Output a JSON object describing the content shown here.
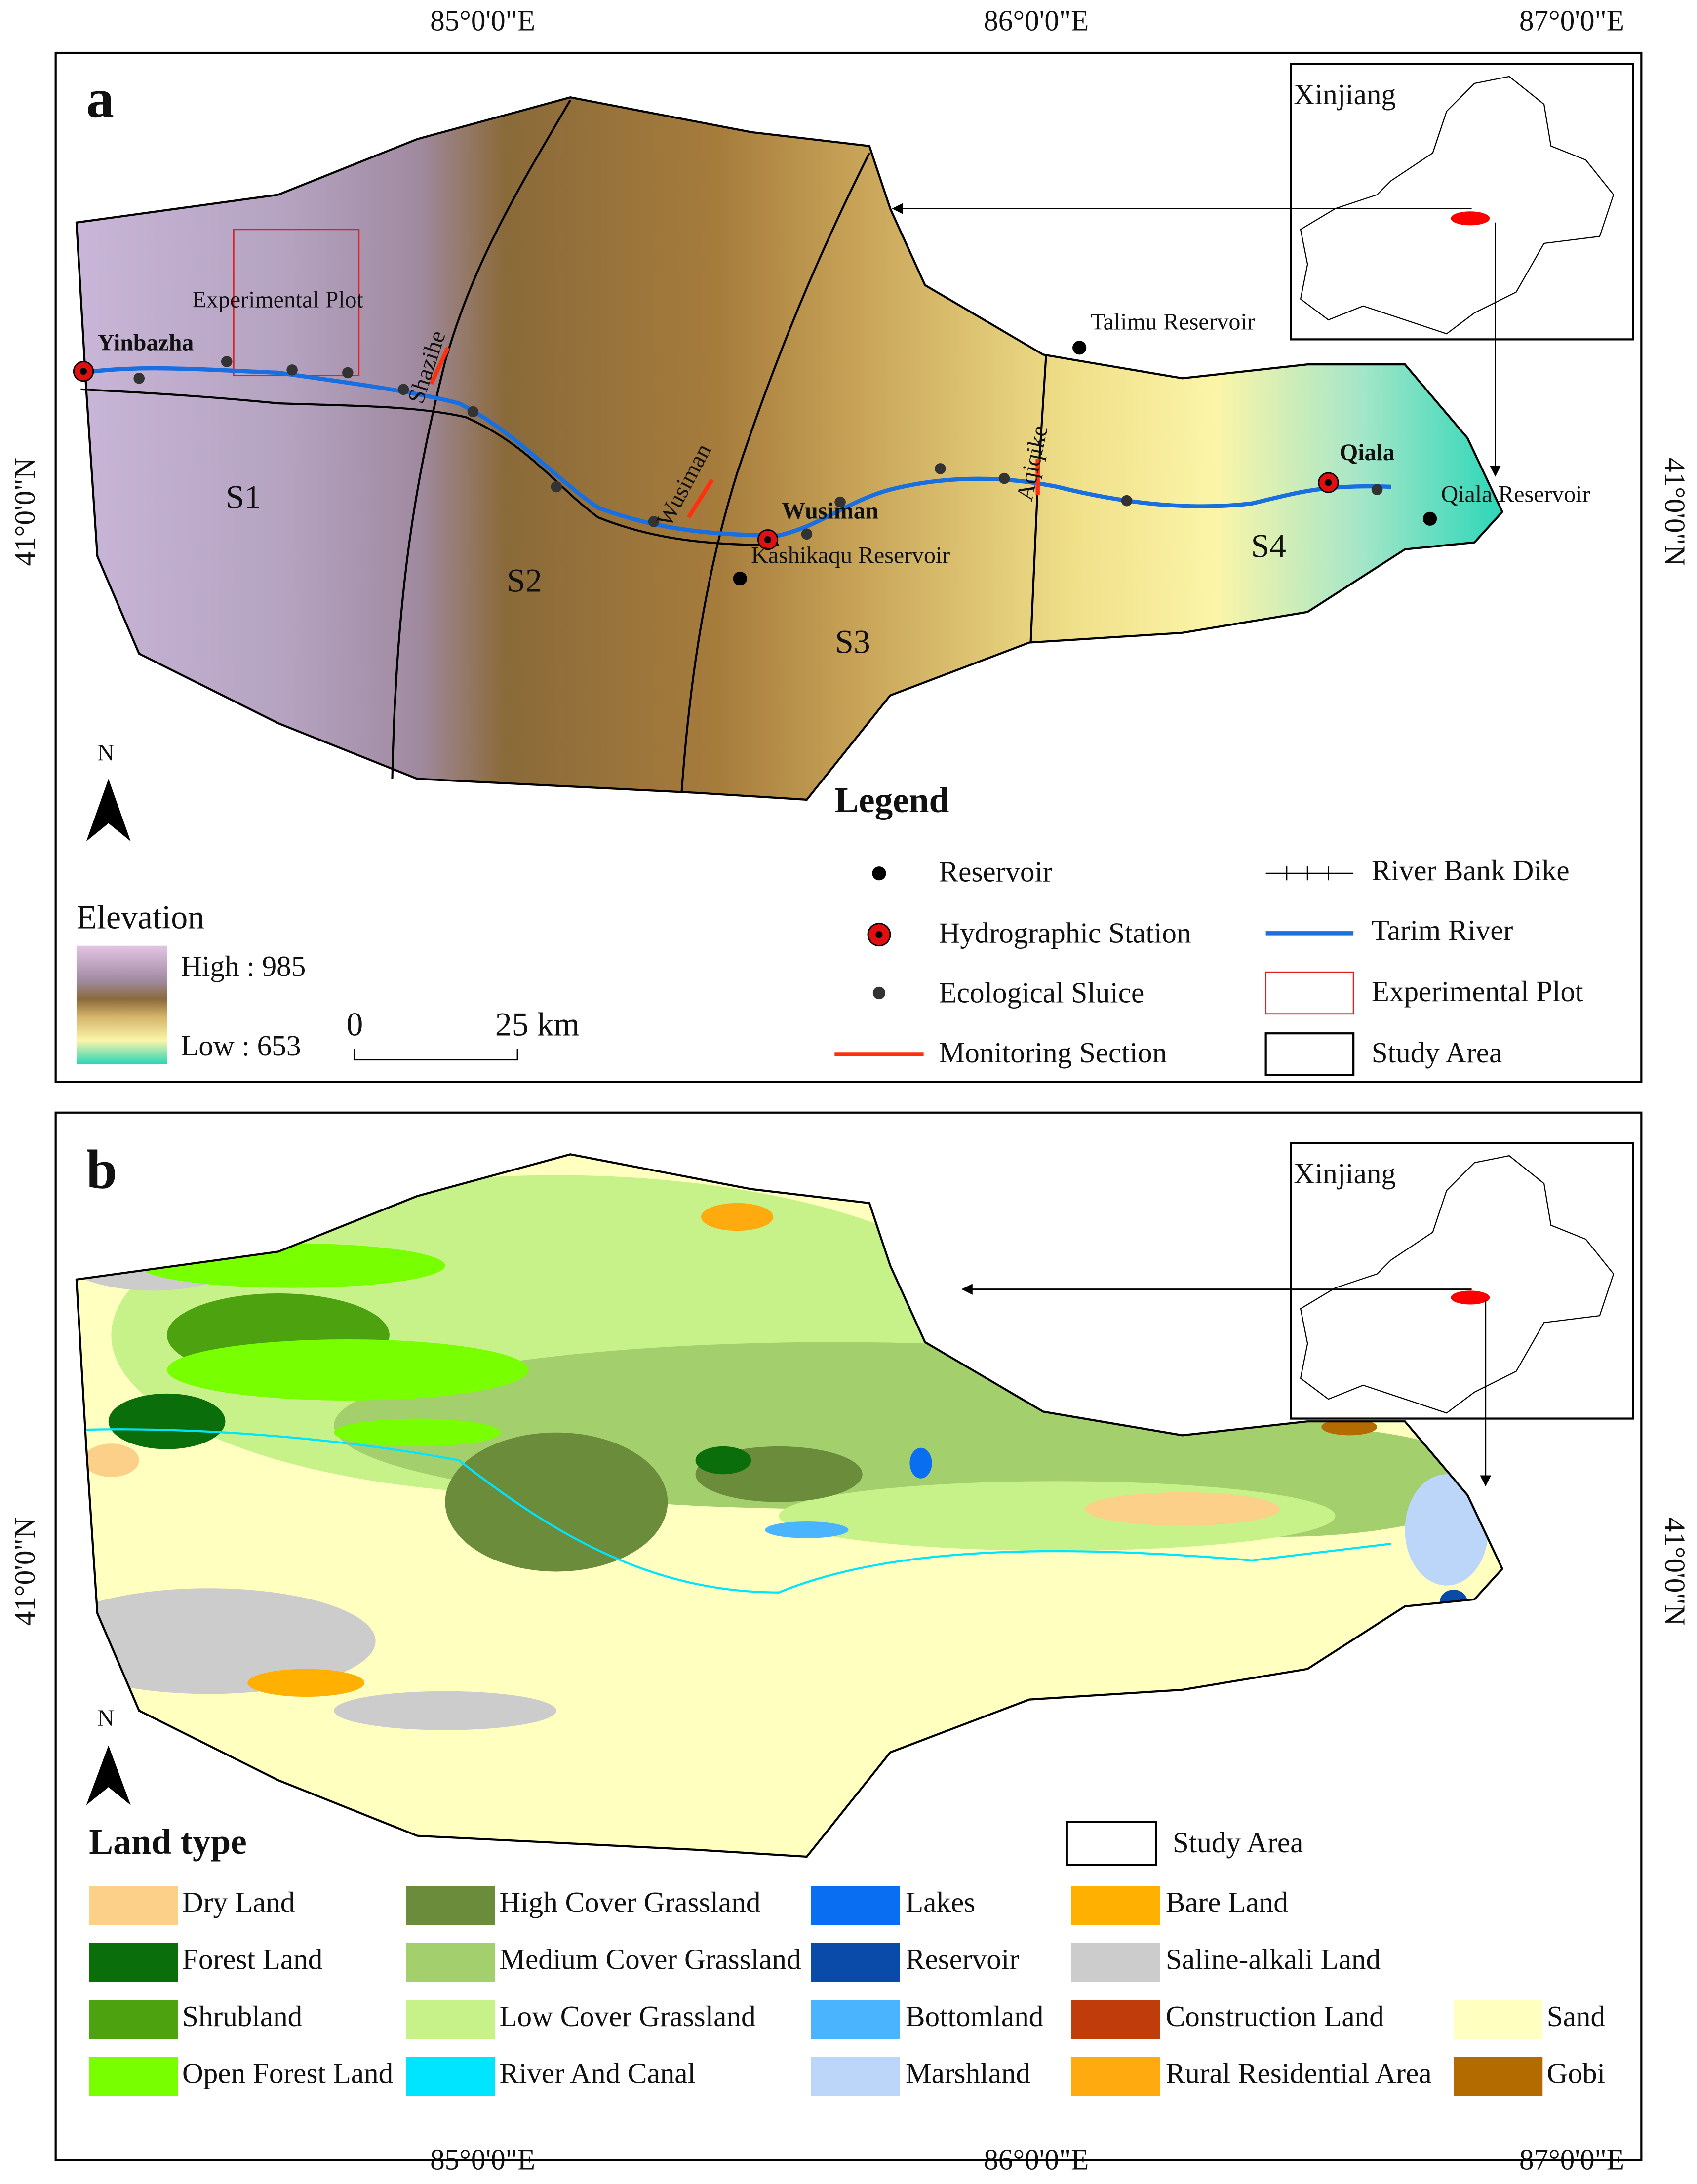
{
  "longitude_labels": [
    "85°0'0\"E",
    "86°0'0\"E",
    "87°0'0\"E"
  ],
  "latitude_label": "41°0'0\"N",
  "panel_a": {
    "label": "a",
    "inset_title": "Xinjiang",
    "north": "N",
    "sections": [
      "S1",
      "S2",
      "S3",
      "S4"
    ],
    "places": {
      "yinbazha": "Yinbazha",
      "experimental_plot": "Experimental Plot",
      "shazihe": "Shazihe",
      "wusiman_section": "Wusiman",
      "aqiqike": "Aqiqike",
      "wusiman": "Wusiman",
      "kashikaqu_reservoir": "Kashikaqu Reservoir",
      "talimu_reservoir": "Talimu Reservoir",
      "qiala": "Qiala",
      "qiala_reservoir": "Qiala Reservoir"
    },
    "elevation": {
      "title": "Elevation",
      "high": "High : 985",
      "low": "Low : 653"
    },
    "scale_bar": {
      "start": "0",
      "end": "25 km"
    },
    "legend": {
      "title": "Legend",
      "items": [
        "Reservoir",
        "Hydrographic Station",
        "Ecological Sluice",
        "Monitoring Section",
        "River Bank Dike",
        "Tarim River",
        "Experimental Plot",
        "Study Area"
      ]
    }
  },
  "panel_b": {
    "label": "b",
    "inset_title": "Xinjiang",
    "north": "N",
    "legend_title": "Land type",
    "study_area": "Study Area",
    "items": [
      {
        "name": "Dry Land",
        "color": "#fcd088"
      },
      {
        "name": "Forest Land",
        "color": "#0a6e0a"
      },
      {
        "name": "Shrubland",
        "color": "#4ca30f"
      },
      {
        "name": "Open Forest Land",
        "color": "#78ff00"
      },
      {
        "name": "High Cover Grassland",
        "color": "#6b8c3a"
      },
      {
        "name": "Medium Cover Grassland",
        "color": "#a3cf6c"
      },
      {
        "name": "Low Cover Grassland",
        "color": "#c7f28a"
      },
      {
        "name": "River And Canal",
        "color": "#00e5ff"
      },
      {
        "name": "Lakes",
        "color": "#0a6ef2"
      },
      {
        "name": "Reservoir",
        "color": "#0a4aa8"
      },
      {
        "name": "Bottomland",
        "color": "#4ab4ff"
      },
      {
        "name": "Marshland",
        "color": "#bcd6fa"
      },
      {
        "name": "Bare Land",
        "color": "#ffb000"
      },
      {
        "name": "Saline-alkali Land",
        "color": "#cccccc"
      },
      {
        "name": "Construction Land",
        "color": "#c03c0a"
      },
      {
        "name": "Rural Residential Area",
        "color": "#ffab10"
      },
      {
        "name": "Sand",
        "color": "#ffffc0"
      },
      {
        "name": "Gobi",
        "color": "#b36b00"
      }
    ]
  }
}
